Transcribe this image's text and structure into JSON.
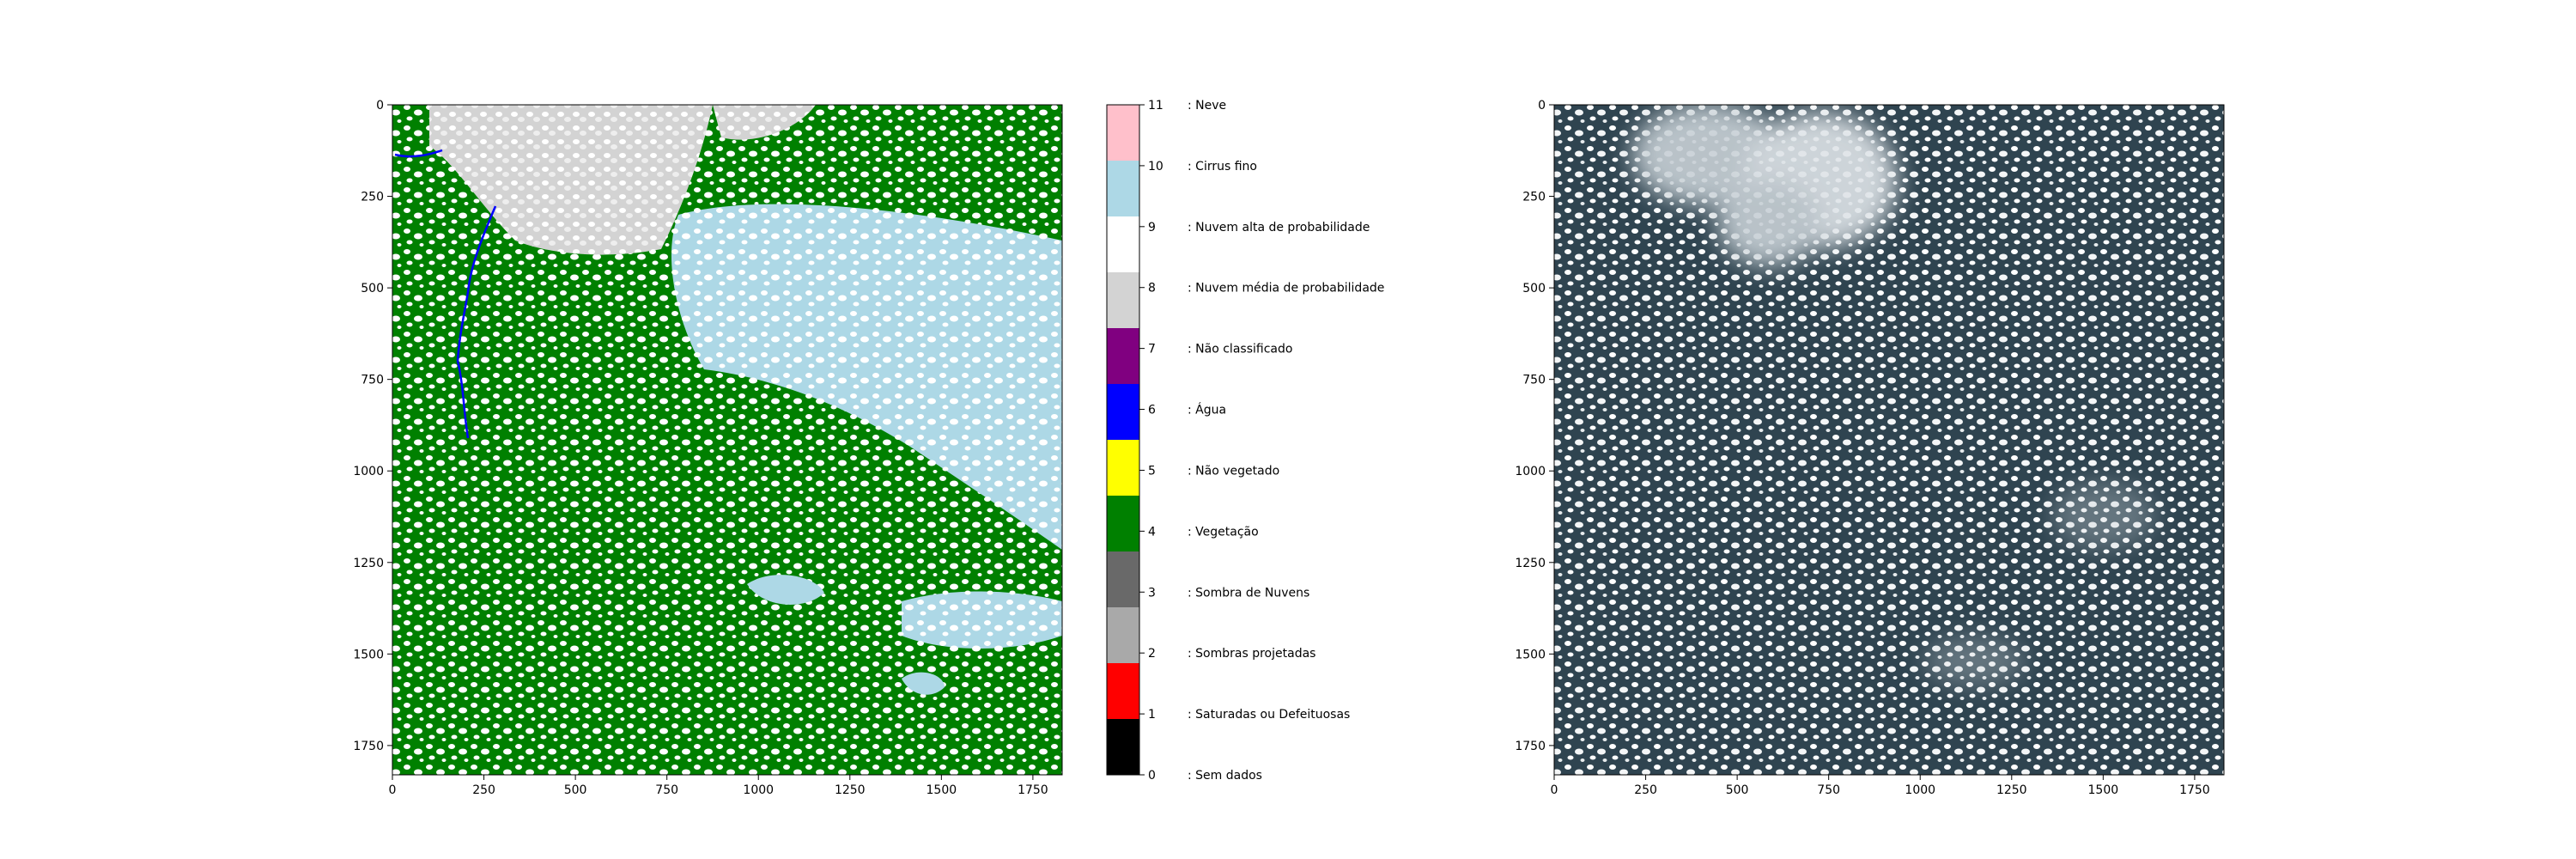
{
  "chart_data": [
    {
      "type": "heatmap",
      "panel": "scene-classification-map",
      "title": "",
      "xlabel": "",
      "ylabel": "",
      "xlim": [
        0,
        1830
      ],
      "ylim": [
        1830,
        0
      ],
      "x_ticks": [
        0,
        250,
        500,
        750,
        1000,
        1250,
        1500,
        1750
      ],
      "y_ticks": [
        0,
        250,
        500,
        750,
        1000,
        1250,
        1500,
        1750
      ],
      "grid": false,
      "dominant_classes": [
        "Vegetação",
        "Nuvem alta de probabilidade",
        "Cirrus fino",
        "Nuvem média de probabilidade",
        "Água"
      ]
    },
    {
      "type": "heatmap",
      "panel": "true-color-image",
      "title": "",
      "xlabel": "",
      "ylabel": "",
      "xlim": [
        0,
        1830
      ],
      "ylim": [
        1830,
        0
      ],
      "x_ticks": [
        0,
        250,
        500,
        750,
        1000,
        1250,
        1500,
        1750
      ],
      "y_ticks": [
        0,
        250,
        500,
        750,
        1000,
        1250,
        1500,
        1750
      ],
      "grid": false
    }
  ],
  "legend": {
    "orientation": "vertical colorbar",
    "classes": [
      {
        "value": 0,
        "label": ": Sem dados",
        "color": "#000000"
      },
      {
        "value": 1,
        "label": ": Saturadas ou Defeituosas",
        "color": "#ff0000"
      },
      {
        "value": 2,
        "label": ": Sombras projetadas",
        "color": "#a9a9a9"
      },
      {
        "value": 3,
        "label": ": Sombra de Nuvens",
        "color": "#696969"
      },
      {
        "value": 4,
        "label": ": Vegetação",
        "color": "#008000"
      },
      {
        "value": 5,
        "label": ": Não vegetado",
        "color": "#ffff00"
      },
      {
        "value": 6,
        "label": ": Água",
        "color": "#0000ff"
      },
      {
        "value": 7,
        "label": ": Não classificado",
        "color": "#800080"
      },
      {
        "value": 8,
        "label": ": Nuvem média de probabilidade",
        "color": "#d3d3d3"
      },
      {
        "value": 9,
        "label": ": Nuvem alta de probabilidade",
        "color": "#ffffff"
      },
      {
        "value": 10,
        "label": ": Cirrus fino",
        "color": "#add8e6"
      },
      {
        "value": 11,
        "label": ": Neve",
        "color": "#ffc0cb"
      }
    ]
  },
  "colors": {
    "scene_background": "#2f4450",
    "vegetation": "#008000",
    "cloud": "#ffffff",
    "cirrus": "#add8e6",
    "medium_cloud": "#d3d3d3",
    "water": "#0000ff",
    "haze": "#c8d0d6"
  }
}
